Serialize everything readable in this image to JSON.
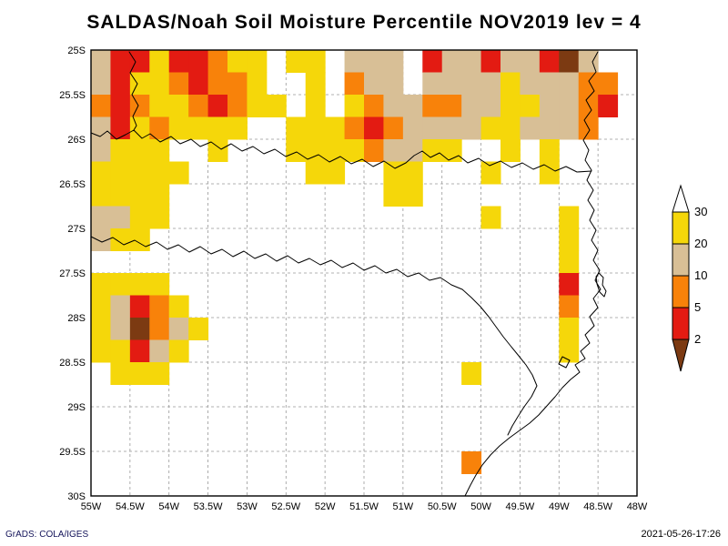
{
  "title": "SALDAS/Noah Soil Moisture Percentile NOV2019 lev = 4",
  "footer": {
    "left": "GrADS: COLA/IGES",
    "right": "2021-05-26-17:26"
  },
  "axes": {
    "lat_ticks": [
      "25S",
      "25.5S",
      "26S",
      "26.5S",
      "27S",
      "27.5S",
      "28S",
      "28.5S",
      "29S",
      "29.5S",
      "30S"
    ],
    "lon_ticks": [
      "55W",
      "54.5W",
      "54W",
      "53.5W",
      "53W",
      "52.5W",
      "52W",
      "51.5W",
      "51W",
      "50.5W",
      "50W",
      "49.5W",
      "49W",
      "48.5W",
      "48W"
    ]
  },
  "colorbar": {
    "labels": [
      "30",
      "20",
      "10",
      "5",
      "2"
    ],
    "colors": [
      "#ffffff",
      "#f5d70a",
      "#d8bf96",
      "#f8820a",
      "#e31b12",
      "#7c3a12"
    ]
  },
  "chart_data": {
    "type": "heatmap",
    "title": "SALDAS/Noah Soil Moisture Percentile NOV2019 lev = 4",
    "dataset": "SALDAS/Noah",
    "variable": "Soil Moisture Percentile",
    "time": "NOV2019",
    "level": "4",
    "lon_range": [
      "55W",
      "48W"
    ],
    "lat_range": [
      "25S",
      "30S"
    ],
    "contour_levels": [
      2,
      5,
      10,
      20,
      30
    ],
    "legend": {
      "Y": "20-30 percentile",
      "T": "10-20 percentile",
      "O": "5-10 percentile",
      "R": "2-5 percentile",
      "B": "below 2 percentile",
      ".": "above 30 / unshaded"
    },
    "code_colors": {
      "Y": "#f5d70a",
      "T": "#d8bf96",
      "O": "#f8820a",
      "R": "#e31b12",
      "B": "#7c3a12"
    },
    "grid_cell_deg": 0.25,
    "grid_origin": "top-left = 25S 55W, rows advance south, columns advance east",
    "grid": [
      "TRRYRROYY.YY.TTT.RTTRTTRBT..",
      "TRYYOROOY..Y.OTT.TTTTYTTTOO.",
      "OROYYOROYY.Y.YOTTOOTTYYTTOR.",
      "TRYOYYYY..YYYOROTTTTYYTTTO..",
      "TYYY..Y...YYYYOTTYY..Y.Y....",
      "YYYYY......YY..YY...Y..Y....",
      "YYYY...........YY...........",
      "TTYY................Y...Y...",
      "TYY.....................Y...",
      "........................Y...",
      "YYYY....................R...",
      "YTROY...................O...",
      "YTBOTY..................Y...",
      "YYRTY...................Y...",
      ".YYY...............Y........",
      "............................",
      "............................",
      "............................",
      "...................O........",
      "............................"
    ]
  }
}
